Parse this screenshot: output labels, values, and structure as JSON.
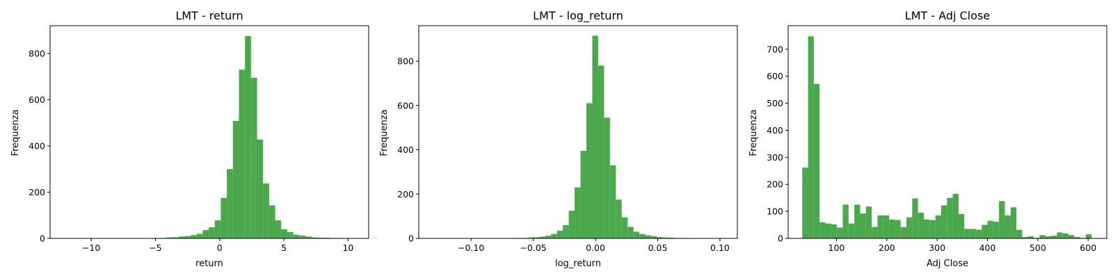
{
  "chart_data": [
    {
      "type": "bar",
      "title": "LMT - return",
      "xlabel": "return",
      "ylabel": "Frequenza",
      "bar_color": "#4ca84c",
      "grid": false,
      "xlim": [
        -13.2,
        11.6
      ],
      "ylim": [
        0,
        920
      ],
      "xticks": [
        -10,
        -5,
        0,
        5,
        10
      ],
      "xtick_labels": [
        "−10",
        "−5",
        "0",
        "5",
        "10"
      ],
      "yticks": [
        0,
        200,
        400,
        600,
        800
      ],
      "bin_start": -12.6,
      "bin_width": 0.47,
      "values": [
        1,
        0,
        1,
        0,
        0,
        0,
        0,
        1,
        0,
        1,
        1,
        1,
        1,
        1,
        1,
        0,
        2,
        2,
        4,
        5,
        8,
        10,
        14,
        20,
        36,
        48,
        78,
        175,
        300,
        508,
        730,
        875,
        695,
        428,
        238,
        143,
        78,
        40,
        27,
        16,
        12,
        8,
        4,
        3,
        3,
        2,
        2,
        1,
        1,
        1,
        1,
        0,
        1
      ]
    },
    {
      "type": "bar",
      "title": "LMT - log_return",
      "xlabel": "log_return",
      "ylabel": "Frequenza",
      "bar_color": "#4ca84c",
      "grid": false,
      "xlim": [
        -0.142,
        0.114
      ],
      "ylim": [
        0,
        960
      ],
      "xticks": [
        -0.1,
        -0.05,
        0,
        0.05,
        0.1
      ],
      "xtick_labels": [
        "−0.10",
        "−0.05",
        "0.00",
        "0.05",
        "0.10"
      ],
      "yticks": [
        0,
        200,
        400,
        600,
        800
      ],
      "bin_start": -0.135,
      "bin_width": 0.00473,
      "values": [
        1,
        0,
        1,
        0,
        0,
        0,
        0,
        1,
        1,
        1,
        1,
        1,
        1,
        1,
        1,
        2,
        2,
        4,
        5,
        8,
        12,
        20,
        35,
        60,
        125,
        230,
        395,
        610,
        915,
        780,
        545,
        330,
        175,
        95,
        52,
        30,
        20,
        14,
        10,
        6,
        4,
        3,
        2,
        2,
        1,
        1,
        1,
        1,
        0,
        1,
        1,
        0,
        1
      ]
    },
    {
      "type": "bar",
      "title": "LMT - Adj Close",
      "xlabel": "Adj Close",
      "ylabel": "Frequenza",
      "bar_color": "#4ca84c",
      "grid": false,
      "xlim": [
        4,
        637
      ],
      "ylim": [
        0,
        787
      ],
      "xticks": [
        100,
        200,
        300,
        400,
        500,
        600
      ],
      "xtick_labels": [
        "100",
        "200",
        "300",
        "400",
        "500",
        "600"
      ],
      "yticks": [
        0,
        100,
        200,
        300,
        400,
        500,
        600,
        700
      ],
      "bin_start": 32,
      "bin_width": 11.5,
      "values": [
        262,
        748,
        572,
        60,
        55,
        52,
        40,
        125,
        55,
        125,
        92,
        118,
        42,
        85,
        85,
        70,
        68,
        42,
        78,
        148,
        95,
        70,
        68,
        85,
        122,
        150,
        165,
        90,
        35,
        35,
        32,
        50,
        65,
        62,
        138,
        85,
        115,
        32,
        5,
        8,
        2,
        12,
        8,
        10,
        22,
        18,
        12,
        5,
        2,
        15
      ]
    }
  ]
}
